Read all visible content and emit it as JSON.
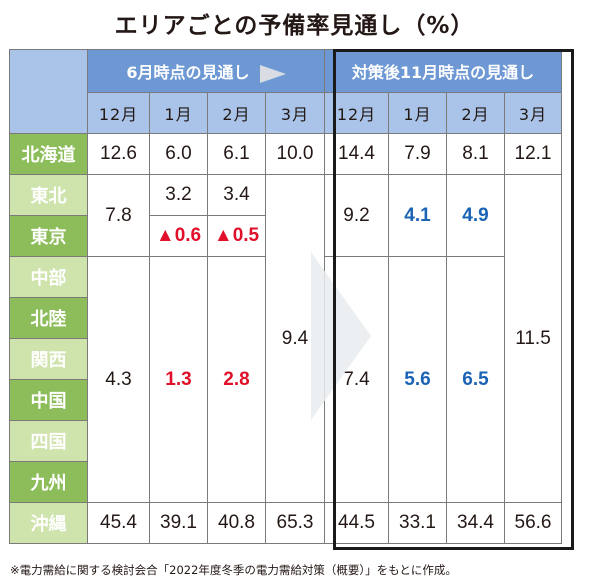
{
  "title": "エリアごとの予備率見通し（%）",
  "header": {
    "group_current": "6月時点の見通し",
    "group_measures": "対策後11月時点の見通し",
    "months": [
      "12月",
      "1月",
      "2月",
      "3月",
      "12月",
      "1月",
      "2月",
      "3月"
    ]
  },
  "regions": {
    "hokkaido": "北海道",
    "tohoku": "東北",
    "tokyo": "東京",
    "chubu": "中部",
    "hokuriku": "北陸",
    "kansai": "関西",
    "chugoku": "中国",
    "shikoku": "四国",
    "kyushu": "九州",
    "okinawa": "沖縄"
  },
  "values": {
    "hokkaido": [
      "12.6",
      "6.0",
      "6.1",
      "10.0",
      "14.4",
      "7.9",
      "8.1",
      "12.1"
    ],
    "tohoku_tokyo_dec_current": "7.8",
    "tohoku_jan_current": "3.2",
    "tohoku_feb_current": "3.4",
    "tokyo_jan_current": "▲0.6",
    "tokyo_feb_current": "▲0.5",
    "tohoku_tokyo_dec_measures": "9.2",
    "tohoku_tokyo_jan_measures": "4.1",
    "tohoku_tokyo_feb_measures": "4.9",
    "mainland_mar_measures": "11.5",
    "mainland_mar_current": "9.4",
    "west_dec_current": "4.3",
    "west_jan_current": "1.3",
    "west_feb_current": "2.8",
    "west_dec_measures": "7.4",
    "west_jan_measures": "5.6",
    "west_feb_measures": "6.5",
    "okinawa": [
      "45.4",
      "39.1",
      "40.8",
      "65.3",
      "44.5",
      "33.1",
      "34.4",
      "56.6"
    ]
  },
  "colors": {
    "header_dark_blue": "#6d98d4",
    "header_light_blue": "#a9c4e8",
    "region_green": "#8cbd5a",
    "region_light_green": "#cfe3ad",
    "shortfall_red": "#e0102a",
    "improved_blue": "#1b64b5"
  },
  "footnote": "※電力需給に関する検討会合「2022年度冬季の電力需給対策（概要）」をもとに作成。"
}
